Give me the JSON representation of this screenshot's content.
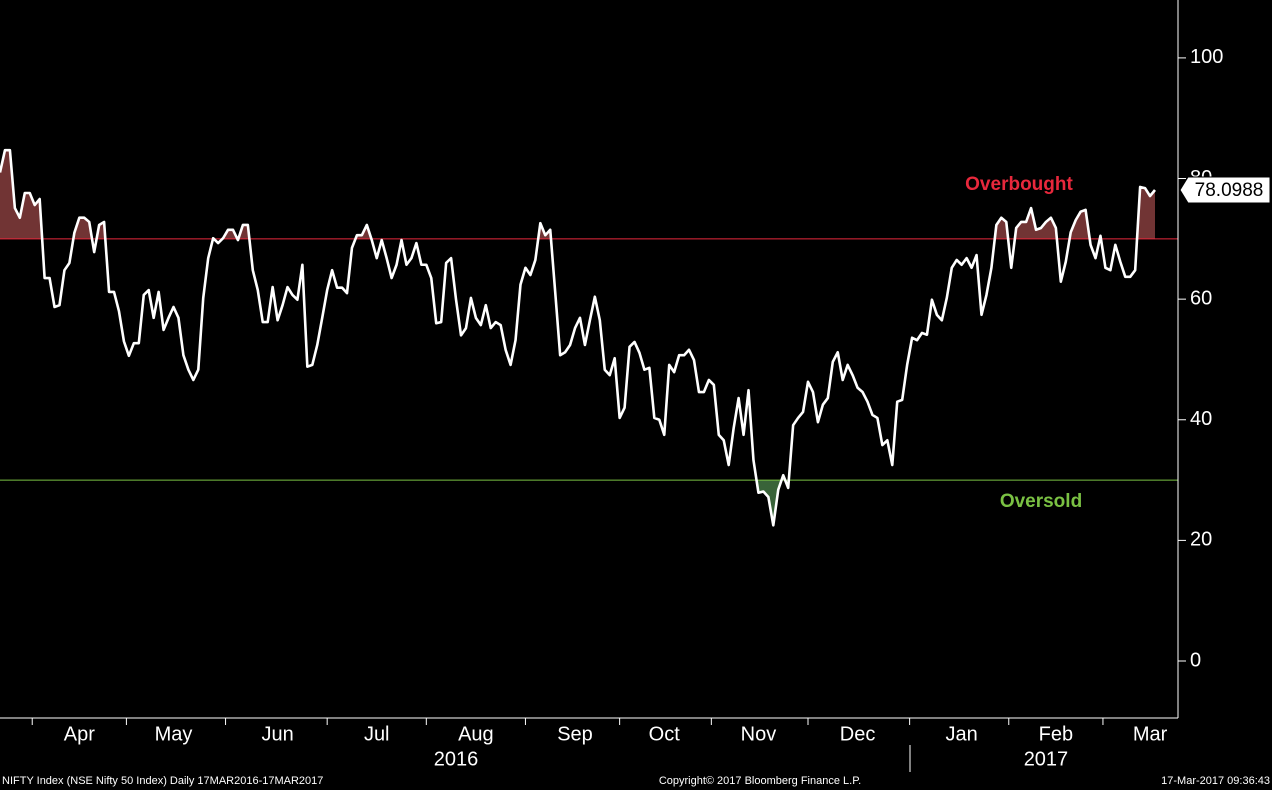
{
  "chart_data": {
    "type": "line",
    "categories": [
      null,
      null,
      null,
      null,
      null,
      null,
      null,
      null,
      null,
      null,
      null,
      null,
      null,
      null,
      null,
      null,
      "Apr",
      null,
      null,
      null,
      null,
      null,
      null,
      null,
      null,
      null,
      null,
      null,
      null,
      null,
      null,
      null,
      null,
      null,
      null,
      "May",
      null,
      null,
      null,
      null,
      null,
      null,
      null,
      null,
      null,
      null,
      null,
      null,
      null,
      null,
      null,
      null,
      null,
      null,
      null,
      null,
      "Jun",
      null,
      null,
      null,
      null,
      null,
      null,
      null,
      null,
      null,
      null,
      null,
      null,
      null,
      null,
      null,
      null,
      null,
      null,
      null,
      "Jul",
      null,
      null,
      null,
      null,
      null,
      null,
      null,
      null,
      null,
      null,
      null,
      null,
      null,
      null,
      null,
      null,
      null,
      null,
      null,
      "Aug",
      null,
      null,
      null,
      null,
      null,
      null,
      null,
      null,
      null,
      null,
      null,
      null,
      null,
      null,
      null,
      null,
      null,
      null,
      null,
      "Sep",
      null,
      null,
      null,
      null,
      null,
      null,
      null,
      null,
      null,
      null,
      null,
      null,
      null,
      null,
      null,
      null,
      null,
      "Oct",
      null,
      null,
      null,
      null,
      null,
      null,
      null,
      null,
      null,
      null,
      null,
      null,
      null,
      null,
      null,
      null,
      null,
      null,
      "Nov",
      null,
      null,
      null,
      null,
      null,
      null,
      null,
      null,
      null,
      null,
      null,
      null,
      null,
      null,
      null,
      null,
      null,
      null,
      null,
      "Dec",
      null,
      null,
      null,
      null,
      null,
      null,
      null,
      null,
      null,
      null,
      null,
      null,
      null,
      null,
      null,
      null,
      null,
      null,
      null,
      null,
      "Jan",
      null,
      null,
      null,
      null,
      null,
      null,
      null,
      null,
      null,
      null,
      null,
      null,
      null,
      null,
      null,
      null,
      null,
      null,
      "Feb",
      null,
      null,
      null,
      null,
      null,
      null,
      null,
      null,
      null,
      null,
      null,
      null,
      null,
      null,
      null,
      null,
      null,
      null,
      "Mar",
      null
    ],
    "year_categories": [
      null,
      null,
      null,
      null,
      null,
      null,
      null,
      null,
      null,
      null,
      null,
      null,
      null,
      null,
      null,
      null,
      null,
      null,
      null,
      null,
      null,
      null,
      null,
      null,
      null,
      null,
      null,
      null,
      null,
      null,
      null,
      null,
      null,
      null,
      null,
      null,
      null,
      null,
      null,
      null,
      null,
      null,
      null,
      null,
      null,
      null,
      null,
      null,
      null,
      null,
      null,
      null,
      null,
      null,
      null,
      null,
      null,
      null,
      null,
      null,
      null,
      null,
      null,
      null,
      null,
      null,
      null,
      null,
      null,
      null,
      null,
      null,
      null,
      null,
      null,
      null,
      null,
      null,
      null,
      null,
      null,
      null,
      null,
      null,
      null,
      null,
      null,
      null,
      null,
      null,
      null,
      null,
      "2016",
      null,
      null,
      null,
      null,
      null,
      null,
      null,
      null,
      null,
      null,
      null,
      null,
      null,
      null,
      null,
      null,
      null,
      null,
      null,
      null,
      null,
      null,
      null,
      null,
      null,
      null,
      null,
      null,
      null,
      null,
      null,
      null,
      null,
      null,
      null,
      null,
      null,
      null,
      null,
      null,
      null,
      null,
      null,
      null,
      null,
      null,
      null,
      null,
      null,
      null,
      null,
      null,
      null,
      null,
      null,
      null,
      null,
      null,
      null,
      null,
      null,
      null,
      null,
      null,
      null,
      null,
      null,
      null,
      null,
      null,
      null,
      null,
      null,
      null,
      null,
      null,
      null,
      null,
      null,
      null,
      null,
      null,
      null,
      null,
      null,
      null,
      null,
      null,
      null,
      null,
      null,
      null,
      null,
      null,
      null,
      null,
      null,
      null,
      null,
      null,
      null,
      null,
      null,
      null,
      null,
      null,
      null,
      null,
      null,
      null,
      null,
      null,
      null,
      null,
      null,
      null,
      null,
      null,
      "2017",
      null,
      null,
      null,
      null,
      null,
      null,
      null,
      null,
      null,
      null,
      null,
      null,
      null,
      null,
      null,
      null,
      null,
      null,
      null,
      null,
      null,
      null
    ],
    "values": [
      81.0,
      84.7,
      84.7,
      75.1,
      73.5,
      77.6,
      77.6,
      75.6,
      76.6,
      63.5,
      63.5,
      58.7,
      59.0,
      64.8,
      66.0,
      71.0,
      73.5,
      73.5,
      72.8,
      67.8,
      72.3,
      72.8,
      61.2,
      61.2,
      58.0,
      53.0,
      50.6,
      52.7,
      52.7,
      60.7,
      61.5,
      56.9,
      61.2,
      54.9,
      56.9,
      58.7,
      56.9,
      50.7,
      48.3,
      46.6,
      48.3,
      60.2,
      66.8,
      70.1,
      69.3,
      70.1,
      71.5,
      71.5,
      69.8,
      72.3,
      72.3,
      64.8,
      61.5,
      56.2,
      56.2,
      62.0,
      56.5,
      59.0,
      62.0,
      60.7,
      59.9,
      65.7,
      48.8,
      49.1,
      52.4,
      56.9,
      61.5,
      64.8,
      61.9,
      61.9,
      61.0,
      68.5,
      70.6,
      70.6,
      72.3,
      69.8,
      66.8,
      69.8,
      66.8,
      63.5,
      65.7,
      69.8,
      65.7,
      66.8,
      69.3,
      65.7,
      65.7,
      63.5,
      56.0,
      56.2,
      66.0,
      66.8,
      59.9,
      54.0,
      55.2,
      60.2,
      56.9,
      55.7,
      59.0,
      55.2,
      56.2,
      55.7,
      51.6,
      49.1,
      53.2,
      62.4,
      65.2,
      64.0,
      66.5,
      72.6,
      70.6,
      71.5,
      61.2,
      50.7,
      51.2,
      52.4,
      55.2,
      56.9,
      52.4,
      56.5,
      60.4,
      56.5,
      48.3,
      47.4,
      50.2,
      40.3,
      42.0,
      52.1,
      52.9,
      51.1,
      48.3,
      48.6,
      40.3,
      40.0,
      37.5,
      49.1,
      47.9,
      50.7,
      50.7,
      51.6,
      49.9,
      44.6,
      44.6,
      46.6,
      45.8,
      37.5,
      36.6,
      32.5,
      38.6,
      43.6,
      37.5,
      44.9,
      33.3,
      27.9,
      28.1,
      27.2,
      22.5,
      28.4,
      30.8,
      28.7,
      39.1,
      40.3,
      41.3,
      46.3,
      44.6,
      39.6,
      42.5,
      43.6,
      49.6,
      51.2,
      46.6,
      49.1,
      47.4,
      45.3,
      44.6,
      43.0,
      40.8,
      40.3,
      35.8,
      36.6,
      32.5,
      43.0,
      43.3,
      49.1,
      53.6,
      53.2,
      54.4,
      54.1,
      59.9,
      57.4,
      56.5,
      60.2,
      65.2,
      66.5,
      65.7,
      66.8,
      65.2,
      67.3,
      57.4,
      60.7,
      65.2,
      72.3,
      73.5,
      72.8,
      65.2,
      71.8,
      72.8,
      72.8,
      75.1,
      71.5,
      71.8,
      72.8,
      73.5,
      71.8,
      62.9,
      66.2,
      71.1,
      73.1,
      74.5,
      74.8,
      69.0,
      66.8,
      70.5,
      65.2,
      64.8,
      69.0,
      66.2,
      63.7,
      63.7,
      64.8,
      78.6,
      78.4,
      77.1,
      78.0988
    ],
    "color": "#ffffff",
    "ylim": [
      -9.45,
      109.6
    ],
    "yticks": [
      0,
      20,
      40,
      60,
      80,
      100
    ],
    "overbought": {
      "value": 70,
      "label": "Overbought",
      "color": "#e8283c"
    },
    "oversold": {
      "value": 30,
      "label": "Oversold",
      "color": "#7ac143"
    }
  },
  "footer": {
    "left": "NIFTY Index (NSE Nifty 50 Index)  Daily 17MAR2016-17MAR2017",
    "center": "Copyright© 2017 Bloomberg Finance L.P.",
    "right": "17-Mar-2017 09:36:43"
  }
}
